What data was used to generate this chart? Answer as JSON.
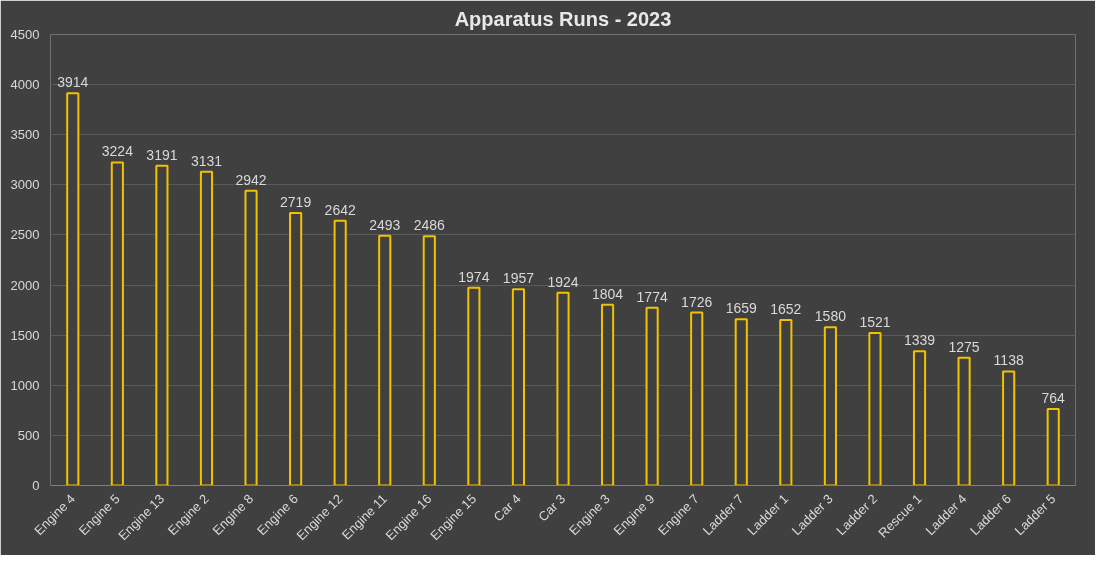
{
  "chart_data": {
    "type": "bar",
    "title": "Apparatus Runs - 2023",
    "categories": [
      "Engine 4",
      "Engine 5",
      "Engine 13",
      "Engine 2",
      "Engine 8",
      "Engine 6",
      "Engine 12",
      "Engine 11",
      "Engine 16",
      "Engine 15",
      "Car 4",
      "Car 3",
      "Engine 3",
      "Engine 9",
      "Engine 7",
      "Ladder 7",
      "Ladder 1",
      "Ladder 3",
      "Ladder 2",
      "Rescue 1",
      "Ladder 4",
      "Ladder 6",
      "Ladder 5"
    ],
    "values": [
      3914,
      3224,
      3191,
      3131,
      2942,
      2719,
      2642,
      2493,
      2486,
      1974,
      1957,
      1924,
      1804,
      1774,
      1726,
      1659,
      1652,
      1580,
      1521,
      1339,
      1275,
      1138,
      764
    ],
    "color": "#f2c200",
    "ylim": [
      0,
      4500
    ],
    "yticks": [
      0,
      500,
      1000,
      1500,
      2000,
      2500,
      3000,
      3500,
      4000,
      4500
    ],
    "grid": "y",
    "data_labels": true
  }
}
